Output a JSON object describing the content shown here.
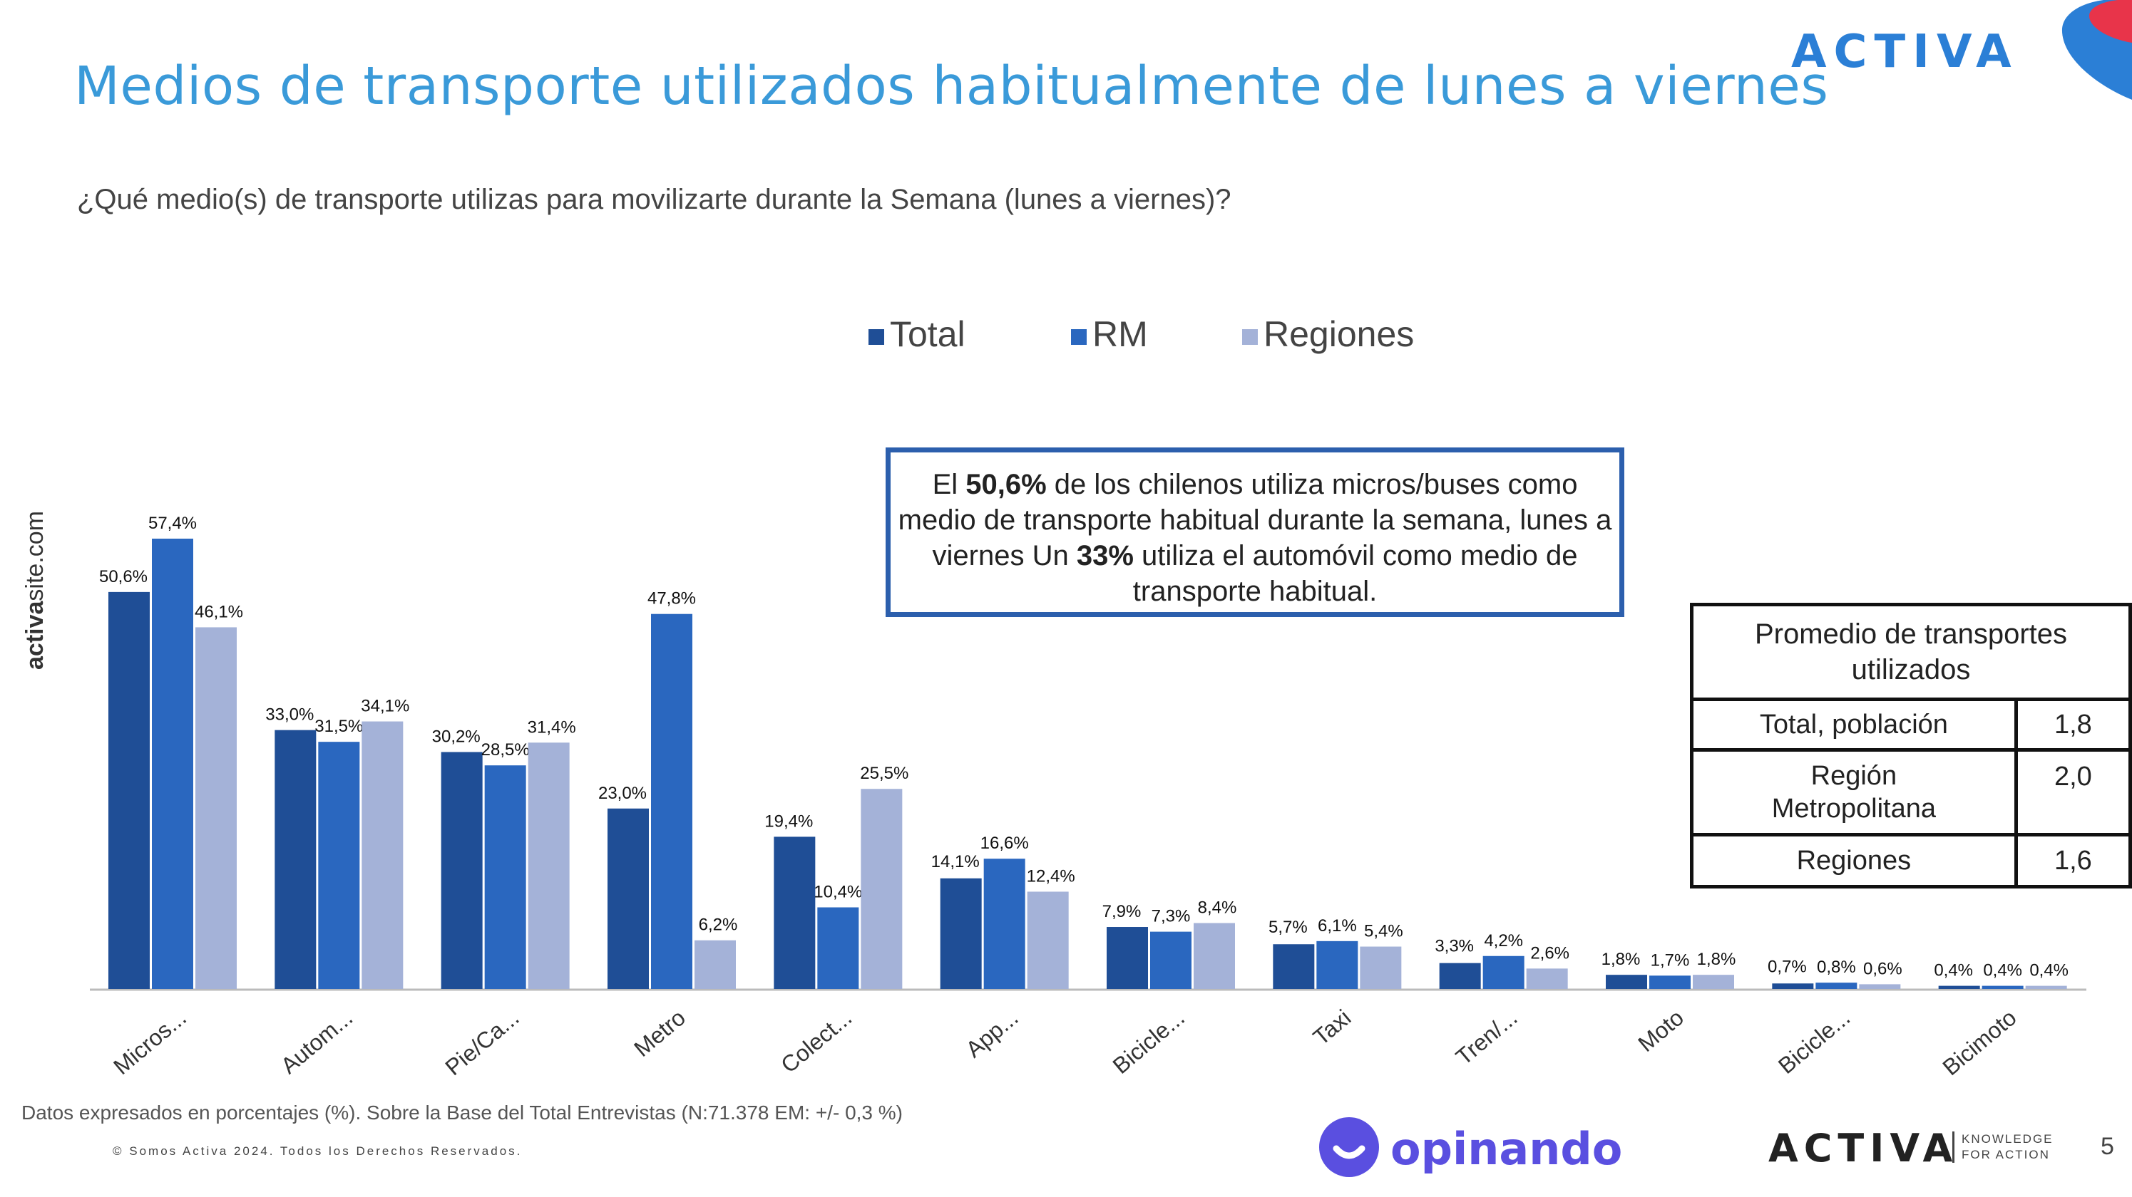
{
  "header": {
    "title": "Medios de transporte utilizados habitualmente de lunes a viernes",
    "subtitle": "¿Qué medio(s) de transporte utilizas para movilizarte durante la Semana (lunes a viernes)?"
  },
  "brand": {
    "logo_top": "ACTIVA",
    "logo_bottom": "ACTIVA",
    "tagline_line1": "KNOWLEDGE",
    "tagline_line2": "FOR ACTION",
    "opinando": "opinando",
    "side_url_bold": "activa",
    "side_url_rest": "site.com",
    "accent_color": "#3a9ad9",
    "brand_red": "#e8344a",
    "opinando_color": "#5a4fe0"
  },
  "callout": {
    "p1": "El ",
    "b1": "50,6%",
    "p2": " de los chilenos utiliza micros/buses  como medio de transporte habitual durante la semana, lunes a viernes  Un ",
    "b2": "33%",
    "p3": " utiliza el automóvil como medio de transporte habitual."
  },
  "avg_table": {
    "header": "Promedio de transportes utilizados",
    "rows": [
      {
        "label": "Total, población",
        "value": "1,8"
      },
      {
        "label": "Región Metropolitana",
        "value": "2,0"
      },
      {
        "label": "Regiones",
        "value": "1,6"
      }
    ]
  },
  "footer": {
    "note": "Datos expresados en porcentajes (%). Sobre la Base del Total Entrevistas (N:71.378 EM: +/- 0,3  %)",
    "copyright": "© Somos Activa 2024. Todos los Derechos Reservados.",
    "page": "5"
  },
  "chart_data": {
    "type": "bar",
    "categories": [
      "Micros...",
      "Autom...",
      "Pie/Ca...",
      "Metro",
      "Colect...",
      "App...",
      "Bicicle...",
      "Taxi",
      "Tren/...",
      "Moto",
      "Bicicle...",
      "Bicimoto"
    ],
    "series": [
      {
        "name": "Total",
        "color": "#1f4e96",
        "values": [
          50.6,
          33.0,
          30.2,
          23.0,
          19.4,
          14.1,
          7.9,
          5.7,
          3.3,
          1.8,
          0.7,
          0.4
        ],
        "labels": [
          "50,6%",
          "33,0%",
          "30,2%",
          "23,0%",
          "19,4%",
          "14,1%",
          "7,9%",
          "5,7%",
          "3,3%",
          "1,8%",
          "0,7%",
          "0,4%"
        ]
      },
      {
        "name": "RM",
        "color": "#2a67bf",
        "values": [
          57.4,
          31.5,
          28.5,
          47.8,
          10.4,
          16.6,
          7.3,
          6.1,
          4.2,
          1.7,
          0.8,
          0.4
        ],
        "labels": [
          "57,4%",
          "31,5%",
          "28,5%",
          "47,8%",
          "10,4%",
          "16,6%",
          "7,3%",
          "6,1%",
          "4,2%",
          "1,7%",
          "0,8%",
          "0,4%"
        ]
      },
      {
        "name": "Regiones",
        "color": "#a4b2d8",
        "values": [
          46.1,
          34.1,
          31.4,
          6.2,
          25.5,
          12.4,
          8.4,
          5.4,
          2.6,
          1.8,
          0.6,
          0.4
        ],
        "labels": [
          "46,1%",
          "34,1%",
          "31,4%",
          "6,2%",
          "25,5%",
          "12,4%",
          "8,4%",
          "5,4%",
          "2,6%",
          "1,8%",
          "0,6%",
          "0,4%"
        ]
      }
    ],
    "ylim": [
      0,
      63
    ],
    "grid": false,
    "legend_position": "top-center"
  }
}
